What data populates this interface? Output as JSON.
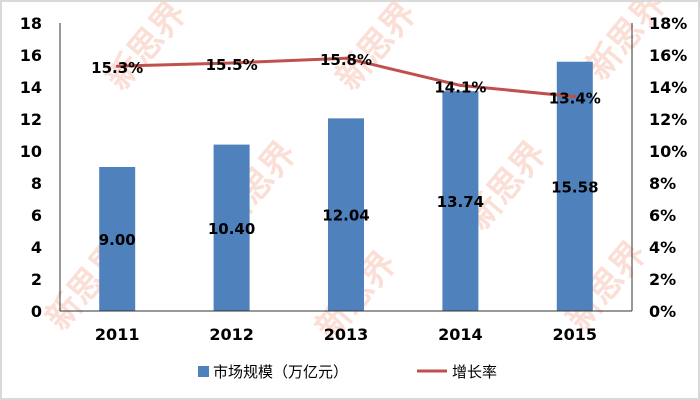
{
  "chart_data": {
    "type": "bar+line",
    "categories": [
      "2011",
      "2012",
      "2013",
      "2014",
      "2015"
    ],
    "series": [
      {
        "name": "市场规模（万亿元）",
        "type": "bar",
        "axis": "left",
        "values": [
          9.0,
          10.4,
          12.04,
          13.74,
          15.58
        ],
        "labels": [
          "9.00",
          "10.40",
          "12.04",
          "13.74",
          "15.58"
        ],
        "color": "#4f81bd"
      },
      {
        "name": "增长率",
        "type": "line",
        "axis": "right",
        "values": [
          15.3,
          15.5,
          15.8,
          14.1,
          13.4
        ],
        "labels": [
          "15.3%",
          "15.5%",
          "15.8%",
          "14.1%",
          "13.4%"
        ],
        "color": "#c0504d"
      }
    ],
    "left_axis": {
      "ylim": [
        0,
        18
      ],
      "ticks": [
        "0",
        "2",
        "4",
        "6",
        "8",
        "10",
        "12",
        "14",
        "16",
        "18"
      ]
    },
    "right_axis": {
      "ylim": [
        0,
        18
      ],
      "ticks": [
        "0%",
        "2%",
        "4%",
        "6%",
        "8%",
        "10%",
        "12%",
        "14%",
        "16%",
        "18%"
      ]
    },
    "grid": false,
    "legend": "bottom",
    "watermark": "新思界 newsijie.com"
  }
}
